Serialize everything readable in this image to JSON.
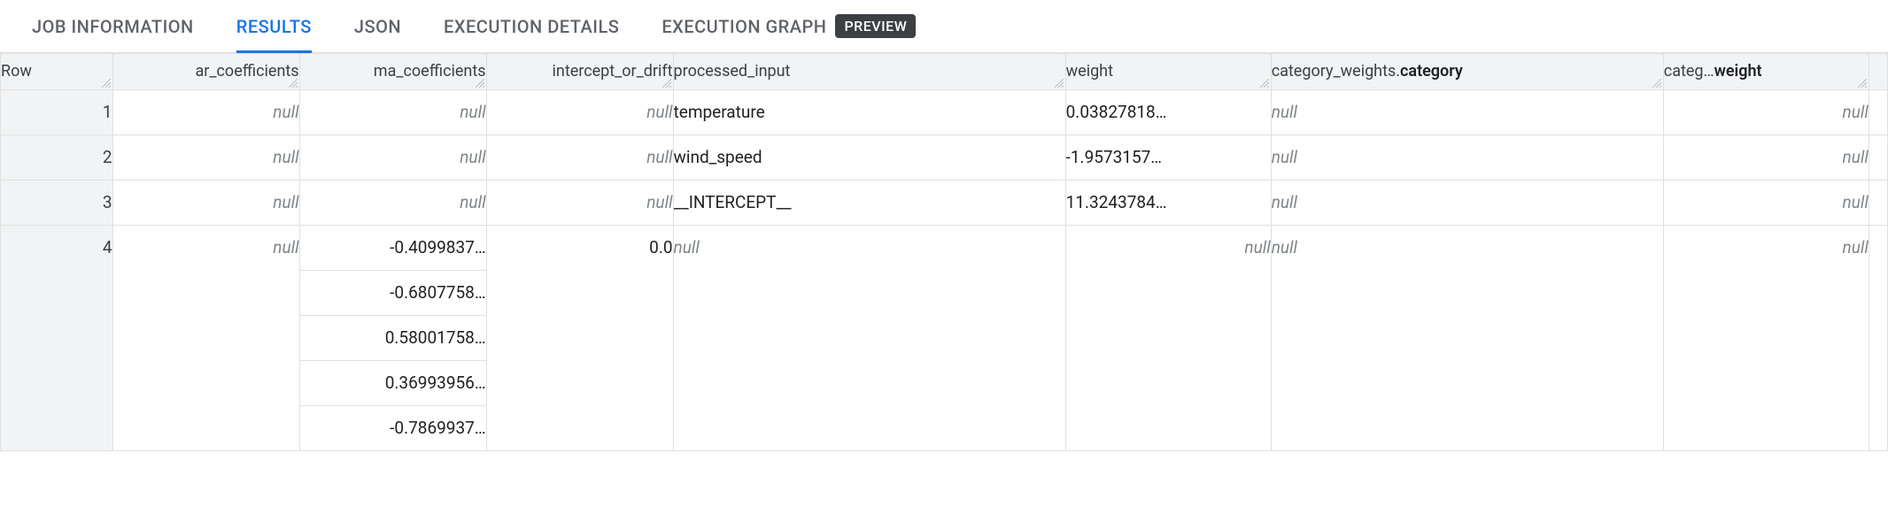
{
  "tabs": {
    "items": [
      {
        "label": "JOB INFORMATION",
        "active": false
      },
      {
        "label": "RESULTS",
        "active": true
      },
      {
        "label": "JSON",
        "active": false
      },
      {
        "label": "EXECUTION DETAILS",
        "active": false
      },
      {
        "label": "EXECUTION GRAPH",
        "active": false,
        "badge": "PREVIEW"
      }
    ]
  },
  "table": {
    "columns": {
      "row": "Row",
      "ar": "ar_coefficients",
      "ma": "ma_coefficients",
      "intercept": "intercept_or_drift",
      "processed_input": "processed_input",
      "weight": "weight",
      "category": "category_weights.",
      "category_bold": "category",
      "cw_prefix": "categ…",
      "cw_bold": "weight"
    },
    "null_label": "null",
    "rows": [
      {
        "n": "1",
        "ar": null,
        "ma": [
          null
        ],
        "intercept": null,
        "processed_input": "temperature",
        "weight": "0.03827818…",
        "category": null,
        "category_weight": null
      },
      {
        "n": "2",
        "ar": null,
        "ma": [
          null
        ],
        "intercept": null,
        "processed_input": "wind_speed",
        "weight": "-1.9573157…",
        "category": null,
        "category_weight": null
      },
      {
        "n": "3",
        "ar": null,
        "ma": [
          null
        ],
        "intercept": null,
        "processed_input": "__INTERCEPT__",
        "weight": "11.3243784…",
        "category": null,
        "category_weight": null
      },
      {
        "n": "4",
        "ar": null,
        "ma": [
          "-0.4099837…",
          "-0.6807758…",
          "0.58001758…",
          "0.36993956…",
          "-0.7869937…"
        ],
        "intercept": "0.0",
        "processed_input": null,
        "weight": null,
        "category": null,
        "category_weight": null
      }
    ]
  },
  "colors": {
    "accent": "#1a73e8",
    "text_muted": "#5f6368",
    "null_text": "#80868b",
    "header_bg": "#f1f3f4",
    "border": "#e0e0e0",
    "badge_bg": "#3c4043"
  }
}
